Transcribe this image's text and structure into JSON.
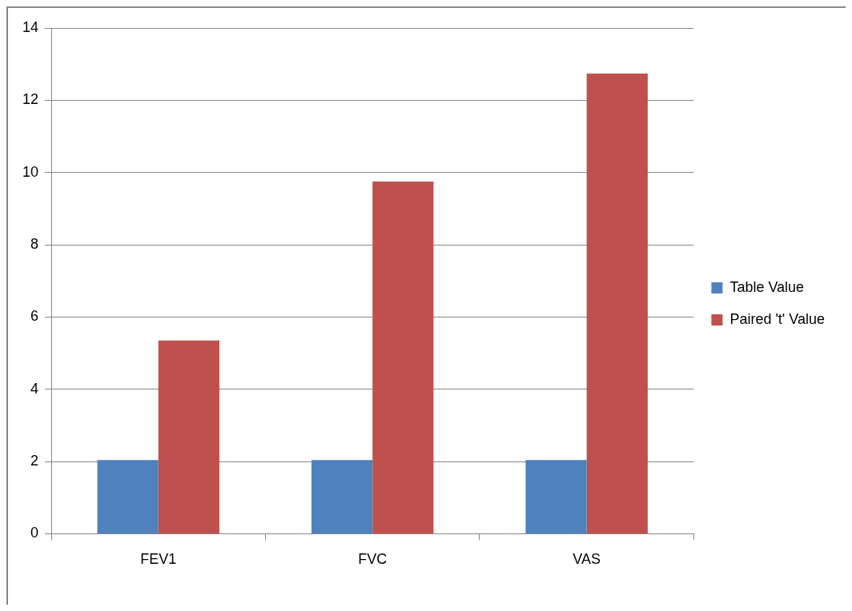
{
  "chart_data": {
    "type": "bar",
    "categories": [
      "FEV1",
      "FVC",
      "VAS"
    ],
    "series": [
      {
        "name": "Table Value",
        "color": "#4f81bd",
        "values": [
          2.04,
          2.04,
          2.04
        ]
      },
      {
        "name": "Paired 't' Value",
        "color": "#c0504d",
        "values": [
          5.35,
          9.75,
          12.74
        ]
      }
    ],
    "ylim": [
      0,
      14
    ],
    "yticks": [
      0,
      2,
      4,
      6,
      8,
      10,
      12,
      14
    ],
    "grid": "y",
    "legend": "right"
  }
}
